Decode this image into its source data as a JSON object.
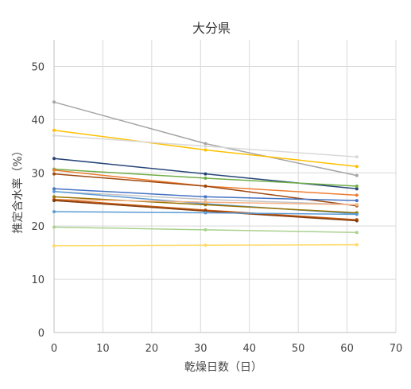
{
  "chart_data": {
    "type": "line",
    "title": "大分県",
    "xlabel": "乾燥日数（日）",
    "ylabel": "推定含水率（%）",
    "xlim": [
      0,
      70
    ],
    "ylim": [
      0,
      55
    ],
    "x_ticks": [
      "0",
      "10",
      "20",
      "30",
      "40",
      "50",
      "60",
      "70"
    ],
    "y_ticks": [
      "0",
      "10",
      "20",
      "30",
      "40",
      "50"
    ],
    "grid": true,
    "x": [
      0,
      31,
      62
    ],
    "series": [
      {
        "color": "#a5a5a5",
        "values": [
          43.3,
          35.5,
          29.5
        ]
      },
      {
        "color": "#ffc000",
        "values": [
          38.0,
          34.3,
          31.2
        ]
      },
      {
        "color": "#d9d9d9",
        "values": [
          37.0,
          35.0,
          33.0
        ]
      },
      {
        "color": "#264478",
        "values": [
          32.7,
          29.8,
          27.0
        ]
      },
      {
        "color": "#70ad47",
        "values": [
          30.7,
          29.0,
          27.5
        ]
      },
      {
        "color": "#ed7d31",
        "values": [
          30.5,
          27.5,
          25.8
        ]
      },
      {
        "color": "#9e480e",
        "values": [
          29.8,
          27.5,
          23.8
        ]
      },
      {
        "color": "#4472c4",
        "values": [
          27.0,
          25.5,
          24.8
        ]
      },
      {
        "color": "#c5c5c5",
        "values": [
          26.5,
          25.0,
          24.0
        ]
      },
      {
        "color": "#5b9bd5",
        "values": [
          26.5,
          24.2,
          22.3
        ]
      },
      {
        "color": "#997300",
        "values": [
          25.5,
          24.0,
          22.5
        ]
      },
      {
        "color": "#f4b183",
        "values": [
          25.0,
          24.5,
          24.0
        ]
      },
      {
        "color": "#c55a11",
        "values": [
          25.0,
          23.0,
          21.2
        ]
      },
      {
        "color": "#843c0c",
        "values": [
          24.8,
          22.8,
          21.0
        ]
      },
      {
        "color": "#5b9bd5",
        "values": [
          22.7,
          22.5,
          22.2
        ]
      },
      {
        "color": "#a9d18e",
        "values": [
          19.8,
          19.3,
          18.8
        ]
      },
      {
        "color": "#ffd966",
        "values": [
          16.3,
          16.4,
          16.5
        ]
      }
    ]
  }
}
